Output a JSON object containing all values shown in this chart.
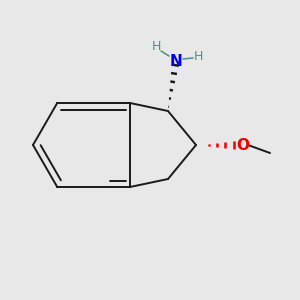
{
  "background_color": "#e8e8e8",
  "bond_color": "#1a1a1a",
  "N_color": "#0000ee",
  "H_color": "#4a9090",
  "O_color": "#ee0000",
  "figsize": [
    3.0,
    3.0
  ],
  "dpi": 100,
  "N_label": "N",
  "H_label": "H",
  "O_label": "O",
  "font_size_N": 11,
  "font_size_H": 9,
  "font_size_O": 11
}
